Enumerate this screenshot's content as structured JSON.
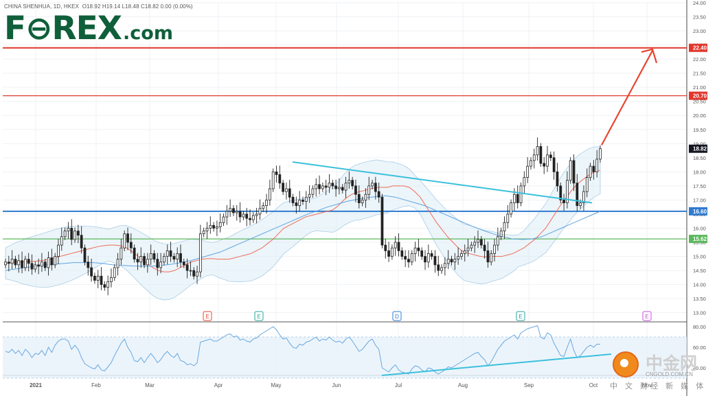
{
  "header": {
    "symbol": "CHINA SHENHUA",
    "interval": "1D",
    "exchange": "HKEX",
    "ohlc": "O18.92  H19.14  L18.48  C18.82  0.00 (0.00%)"
  },
  "logo": {
    "brand": "F⊖REX",
    "suffix": ".com"
  },
  "watermark": {
    "cn": "中金网",
    "domain": "CNGOLD.COM.CN",
    "sub": "中 文 财经 新 媒 体"
  },
  "colors": {
    "up": "#ffffff",
    "down": "#222222",
    "ma_fast": "#f06b56",
    "ma_slow": "#5fa3e0",
    "band": "#a9cde6",
    "line_red": "#e0362c",
    "line_blue": "#2f7bd0",
    "line_green": "#5cb85c",
    "trend": "#3ac0dc",
    "arrow": "#e8452f",
    "rsi": "#66a8e0"
  },
  "chart_data": {
    "type": "candlestick",
    "title": "CHINA SHENHUA, 1D, HKEX",
    "price_axis": {
      "range": [
        12.7,
        24.0
      ],
      "ticks": [
        "24.00",
        "23.50",
        "23.00",
        "22.50",
        "22.00",
        "21.50",
        "21.00",
        "20.50",
        "20.00",
        "19.50",
        "19.00",
        "18.50",
        "18.00",
        "17.50",
        "17.00",
        "16.50",
        "16.00",
        "15.50",
        "15.00",
        "14.50",
        "14.00",
        "13.50",
        "13.00"
      ]
    },
    "time_axis": [
      "2021",
      "Feb",
      "Mar",
      "Apr",
      "May",
      "Jun",
      "Jul",
      "Aug",
      "Sep",
      "Oct",
      "Nov"
    ],
    "horizontal_levels": [
      {
        "label": "22.40",
        "value": 22.4,
        "color": "#e0362c",
        "width": 2
      },
      {
        "label": "20.70",
        "value": 20.7,
        "color": "#e0362c",
        "width": 1.2
      },
      {
        "label": "16.60",
        "value": 16.6,
        "color": "#2f7bd0",
        "width": 2
      },
      {
        "label": "15.62",
        "value": 15.62,
        "color": "#5cb85c",
        "width": 1.2
      }
    ],
    "last_price": {
      "label": "18.82",
      "value": 18.82
    },
    "candles_close": [
      14.8,
      14.75,
      14.9,
      14.7,
      14.85,
      14.6,
      14.9,
      14.75,
      14.55,
      14.7,
      14.65,
      14.8,
      14.6,
      14.95,
      14.7,
      15.0,
      15.4,
      15.7,
      15.9,
      16.0,
      15.6,
      15.9,
      15.75,
      15.3,
      14.8,
      14.6,
      14.3,
      14.15,
      14.3,
      14.0,
      13.9,
      14.1,
      14.25,
      14.6,
      14.9,
      15.3,
      15.8,
      15.5,
      15.3,
      14.9,
      14.8,
      15.0,
      14.7,
      14.9,
      15.1,
      14.9,
      14.6,
      14.8,
      15.0,
      15.2,
      15.0,
      14.9,
      15.1,
      14.8,
      14.7,
      14.5,
      14.5,
      14.3,
      14.45,
      15.8,
      15.9,
      16.0,
      16.1,
      16.0,
      16.05,
      16.2,
      16.4,
      16.6,
      16.7,
      16.55,
      16.6,
      16.4,
      16.5,
      16.35,
      16.3,
      16.45,
      16.5,
      16.7,
      16.8,
      17.0,
      17.4,
      18.0,
      17.9,
      17.6,
      17.3,
      17.4,
      17.1,
      16.9,
      16.8,
      17.0,
      16.95,
      17.1,
      17.2,
      17.4,
      17.55,
      17.4,
      17.5,
      17.45,
      17.6,
      17.5,
      17.4,
      17.45,
      17.35,
      17.6,
      17.7,
      17.5,
      17.2,
      16.9,
      17.0,
      17.2,
      17.5,
      17.6,
      17.3,
      17.1,
      15.4,
      15.2,
      15.0,
      15.3,
      15.5,
      15.2,
      15.0,
      14.9,
      14.8,
      15.1,
      15.3,
      15.2,
      15.0,
      14.8,
      15.1,
      15.0,
      14.7,
      14.5,
      14.6,
      14.75,
      14.9,
      14.8,
      14.9,
      15.0,
      15.1,
      15.2,
      15.3,
      15.4,
      15.5,
      15.6,
      15.4,
      15.2,
      14.8,
      15.1,
      15.4,
      15.7,
      15.9,
      16.2,
      16.5,
      16.9,
      17.2,
      16.9,
      17.5,
      17.8,
      18.2,
      18.4,
      18.6,
      18.9,
      18.3,
      18.2,
      18.6,
      18.5,
      18.0,
      17.5,
      17.0,
      16.9,
      17.7,
      18.4,
      17.6,
      16.8,
      16.9,
      17.3,
      17.8,
      18.2,
      18.0,
      18.45,
      18.82
    ],
    "ma_fast_values": [
      14.75,
      14.78,
      14.8,
      14.8,
      14.82,
      14.82,
      14.84,
      14.86,
      14.9,
      14.95,
      15.0,
      15.05,
      15.1,
      15.15,
      15.2,
      15.25,
      15.3,
      15.35,
      15.38,
      15.4,
      15.4,
      15.38,
      15.32,
      15.2,
      15.05,
      14.9,
      14.75,
      14.6,
      14.5,
      14.45,
      14.45,
      14.5,
      14.6,
      14.7,
      14.8,
      14.85,
      14.9,
      14.92,
      14.92,
      14.9,
      14.9,
      14.9,
      14.95,
      15.0,
      15.05,
      15.1,
      15.2,
      15.3,
      15.45,
      15.6,
      15.8,
      16.0,
      16.1,
      16.2,
      16.3,
      16.4,
      16.45,
      16.5,
      16.55,
      16.6,
      16.65,
      16.8,
      17.0,
      17.15,
      17.25,
      17.3,
      17.35,
      17.4,
      17.45,
      17.45,
      17.45,
      17.5,
      17.5,
      17.5,
      17.45,
      17.3,
      17.1,
      16.8,
      16.5,
      16.2,
      15.95,
      15.7,
      15.5,
      15.3,
      15.15,
      15.1,
      15.05,
      15.0,
      14.98,
      15.0,
      15.0,
      15.0,
      15.05,
      15.1,
      15.2,
      15.3,
      15.45,
      15.6,
      15.8,
      16.0,
      16.3,
      16.6,
      16.9,
      17.15,
      17.4,
      17.6,
      17.75,
      17.9,
      18.0,
      18.05
    ],
    "ma_slow_values": [
      14.5,
      14.55,
      14.6,
      14.65,
      14.7,
      14.72,
      14.75,
      14.78,
      14.78,
      14.78,
      14.75,
      14.7,
      14.68,
      14.66,
      14.65,
      14.65,
      14.68,
      14.72,
      14.78,
      14.85,
      14.95,
      15.05,
      15.15,
      15.3,
      15.45,
      15.6,
      15.75,
      15.9,
      16.05,
      16.2,
      16.35,
      16.5,
      16.62,
      16.75,
      16.85,
      16.95,
      17.02,
      17.08,
      17.12,
      17.15,
      17.1,
      17.0,
      16.9,
      16.8,
      16.65,
      16.5,
      16.35,
      16.2,
      16.05,
      15.92,
      15.8,
      15.7,
      15.62,
      15.6,
      15.62,
      15.7,
      15.85,
      16.0,
      16.15,
      16.3,
      16.45,
      16.6
    ],
    "trendline_upper": [
      [
        "May",
        18.35
      ],
      [
        "Oct",
        16.9
      ]
    ],
    "rsi": {
      "axis_ticks": [
        "80.00",
        "60.00",
        "40.00"
      ],
      "range": [
        34,
        84
      ],
      "band": [
        30,
        70
      ],
      "values": [
        56,
        55,
        58,
        54,
        57,
        52,
        58,
        55,
        50,
        54,
        53,
        57,
        52,
        60,
        55,
        62,
        66,
        68,
        68,
        66,
        58,
        62,
        58,
        50,
        44,
        42,
        40,
        39,
        43,
        38,
        37,
        41,
        45,
        52,
        58,
        64,
        68,
        60,
        55,
        47,
        46,
        50,
        45,
        50,
        54,
        50,
        45,
        48,
        53,
        56,
        52,
        50,
        54,
        47,
        46,
        43,
        44,
        42,
        45,
        65,
        66,
        67,
        68,
        66,
        66,
        68,
        70,
        72,
        73,
        70,
        71,
        67,
        68,
        66,
        65,
        68,
        69,
        72,
        74,
        76,
        78,
        80,
        77,
        72,
        68,
        69,
        64,
        60,
        59,
        63,
        62,
        65,
        66,
        68,
        70,
        66,
        68,
        67,
        70,
        67,
        65,
        66,
        64,
        68,
        70,
        66,
        61,
        56,
        58,
        62,
        66,
        68,
        62,
        58,
        40,
        38,
        36,
        40,
        43,
        38,
        36,
        35,
        34,
        39,
        42,
        41,
        38,
        36,
        40,
        39,
        36,
        34,
        36,
        38,
        41,
        40,
        42,
        44,
        46,
        48,
        50,
        52,
        54,
        55,
        51,
        48,
        42,
        46,
        52,
        58,
        62,
        66,
        68,
        70,
        72,
        68,
        74,
        76,
        78,
        79,
        80,
        81,
        70,
        68,
        74,
        72,
        64,
        58,
        52,
        51,
        60,
        68,
        57,
        50,
        52,
        56,
        60,
        62,
        60,
        63,
        63
      ]
    },
    "markers": [
      {
        "label": "E",
        "at": "Feb",
        "color": "#e8452f"
      },
      {
        "label": "E",
        "at": "Mar",
        "color": "#26a69a"
      },
      {
        "label": "D",
        "at": "Jul",
        "color": "#2f7bd0"
      },
      {
        "label": "E",
        "at": "Sep",
        "color": "#26a69a"
      },
      {
        "label": "E",
        "at": "Nov",
        "color": "#c94fd8"
      }
    ]
  }
}
